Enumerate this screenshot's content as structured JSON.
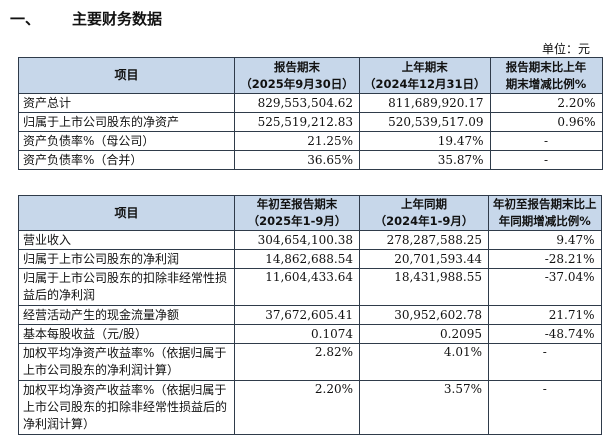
{
  "section": {
    "number": "一、",
    "title": "主要财务数据"
  },
  "unit_label": "单位：元",
  "table1": {
    "headers": {
      "item": "项目",
      "current_line1": "报告期末",
      "current_line2": "（2025年9月30日）",
      "prev_line1": "上年期末",
      "prev_line2": "（2024年12月31日）",
      "change_line1": "报告期末比上年",
      "change_line2": "期末增减比例%"
    },
    "rows": [
      {
        "label": "资产总计",
        "current": "829,553,504.62",
        "prev": "811,689,920.17",
        "change": "2.20%"
      },
      {
        "label": "归属于上市公司股东的净资产",
        "current": "525,519,212.83",
        "prev": "520,539,517.09",
        "change": "0.96%"
      },
      {
        "label": "资产负债率%（母公司）",
        "current": "21.25%",
        "prev": "19.47%",
        "change": "-"
      },
      {
        "label": "资产负债率%（合并）",
        "current": "36.65%",
        "prev": "35.87%",
        "change": "-"
      }
    ]
  },
  "table2": {
    "headers": {
      "item": "项目",
      "current_line1": "年初至报告期末",
      "current_line2": "（2025年1-9月）",
      "prev_line1": "上年同期",
      "prev_line2": "（2024年1-9月）",
      "change_line1": "年初至报告期末比上",
      "change_line2": "年同期增减比例%"
    },
    "rows": [
      {
        "label": "营业收入",
        "current": "304,654,100.38",
        "prev": "278,287,588.25",
        "change": "9.47%"
      },
      {
        "label": "归属于上市公司股东的净利润",
        "current": "14,862,688.54",
        "prev": "20,701,593.44",
        "change": "-28.21%"
      },
      {
        "label": "归属于上市公司股东的扣除非经常性损益后的净利润",
        "current": "11,604,433.64",
        "prev": "18,431,988.55",
        "change": "-37.04%"
      },
      {
        "label": "经营活动产生的现金流量净额",
        "current": "37,672,605.41",
        "prev": "30,952,602.78",
        "change": "21.71%"
      },
      {
        "label": "基本每股收益（元/股）",
        "current": "0.1074",
        "prev": "0.2095",
        "change": "-48.74%"
      },
      {
        "label": "加权平均净资产收益率%（依据归属于上市公司股东的净利润计算）",
        "current": "2.82%",
        "prev": "4.01%",
        "change": "-"
      },
      {
        "label": "加权平均净资产收益率%（依据归属于上市公司股东的扣除非经常性损益后的净利润计算）",
        "current": "2.20%",
        "prev": "3.57%",
        "change": "-"
      }
    ]
  }
}
